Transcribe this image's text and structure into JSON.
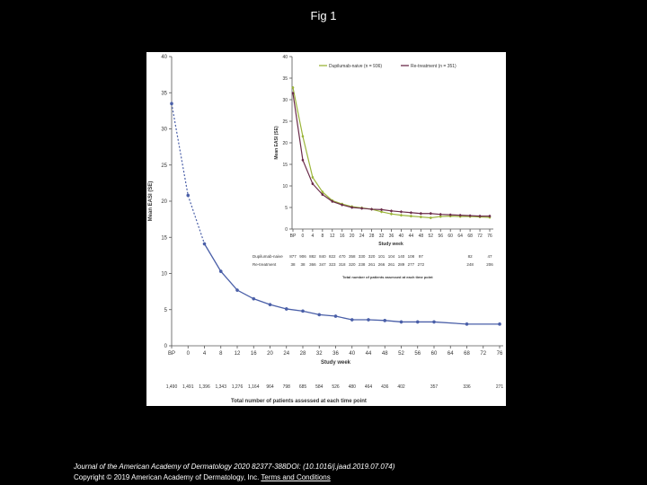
{
  "page": {
    "title": "Fig 1"
  },
  "caption": {
    "journal": "Journal of the American Academy of Dermatology 2020 82377-388DOI: (10.1016/j.jaad.2019.07.074)",
    "copyright": "Copyright © 2019 American Academy of Dermatology, Inc.",
    "terms_link": "Terms and Conditions"
  },
  "chart_data": [
    {
      "type": "line",
      "xlabel": "Study week",
      "ylabel": "Mean EASI (SE)",
      "categories": [
        "BP",
        "0",
        "4",
        "8",
        "12",
        "16",
        "20",
        "24",
        "28",
        "32",
        "36",
        "40",
        "44",
        "48",
        "52",
        "56",
        "60",
        "64",
        "68",
        "72",
        "76"
      ],
      "ylim": [
        0,
        40
      ],
      "yticks": [
        "0",
        "5",
        "10",
        "15",
        "20",
        "25",
        "30",
        "35",
        "40"
      ],
      "grid": false,
      "series": [
        {
          "values": [
            33.5,
            20.8,
            14.1,
            10.3,
            7.7,
            6.5,
            5.7,
            5.1,
            4.8,
            4.3,
            4.1,
            3.6,
            3.6,
            3.5,
            3.3,
            3.3,
            3.3,
            null,
            3.0,
            null,
            3.0
          ],
          "color": "#4a5fa8"
        }
      ],
      "counts_title": "Total number of patients assessed at each time point",
      "counts": [
        "1,490",
        "1,491",
        "1,396",
        "1,343",
        "1,276",
        "1,164",
        "964",
        "798",
        "685",
        "584",
        "526",
        "480",
        "464",
        "436",
        "402",
        "",
        "357",
        "",
        "336",
        "",
        "271"
      ]
    },
    {
      "type": "line",
      "xlabel": "Study week",
      "ylabel": "Mean EASI (SE)",
      "categories": [
        "BP",
        "0",
        "4",
        "8",
        "12",
        "16",
        "20",
        "24",
        "28",
        "32",
        "36",
        "40",
        "44",
        "48",
        "52",
        "56",
        "60",
        "64",
        "68",
        "72",
        "76"
      ],
      "ylim": [
        0,
        40
      ],
      "yticks": [
        "0",
        "5",
        "10",
        "15",
        "20",
        "25",
        "30",
        "35",
        "40"
      ],
      "legend_position": "top-right",
      "series": [
        {
          "name": "Dupilumab-naive (n = 936)",
          "color": "#9bb53a",
          "values": [
            32.8,
            21.5,
            12.0,
            8.6,
            6.6,
            5.8,
            5.2,
            4.9,
            4.6,
            4.0,
            3.5,
            3.2,
            3.0,
            2.8,
            2.6,
            2.9,
            3.0,
            2.9,
            2.9,
            2.8,
            2.7
          ]
        },
        {
          "name": "Re-treatment (n = 351)",
          "color": "#6b2c4a",
          "values": [
            31.5,
            16.0,
            10.5,
            8.0,
            6.4,
            5.6,
            5.0,
            4.8,
            4.6,
            4.5,
            4.2,
            4.0,
            3.8,
            3.6,
            3.6,
            3.4,
            3.3,
            3.2,
            3.1,
            3.0,
            3.0
          ]
        }
      ],
      "counts_title": "Total number of patients assessed at each time point",
      "count_rows": [
        {
          "label": "Dupilumab-naive",
          "values": [
            "877",
            "906",
            "882",
            "840",
            "822",
            "470",
            "358",
            "330",
            "320",
            "101",
            "104",
            "140",
            "108",
            "97",
            "",
            "",
            "",
            "",
            "82",
            "",
            "47"
          ]
        },
        {
          "label": "Re-treatment",
          "values": [
            "38",
            "38",
            "366",
            "347",
            "323",
            "318",
            "320",
            "238",
            "261",
            "266",
            "261",
            "289",
            "277",
            "272",
            "",
            "",
            "",
            "",
            "248",
            "",
            "206"
          ]
        }
      ]
    }
  ]
}
